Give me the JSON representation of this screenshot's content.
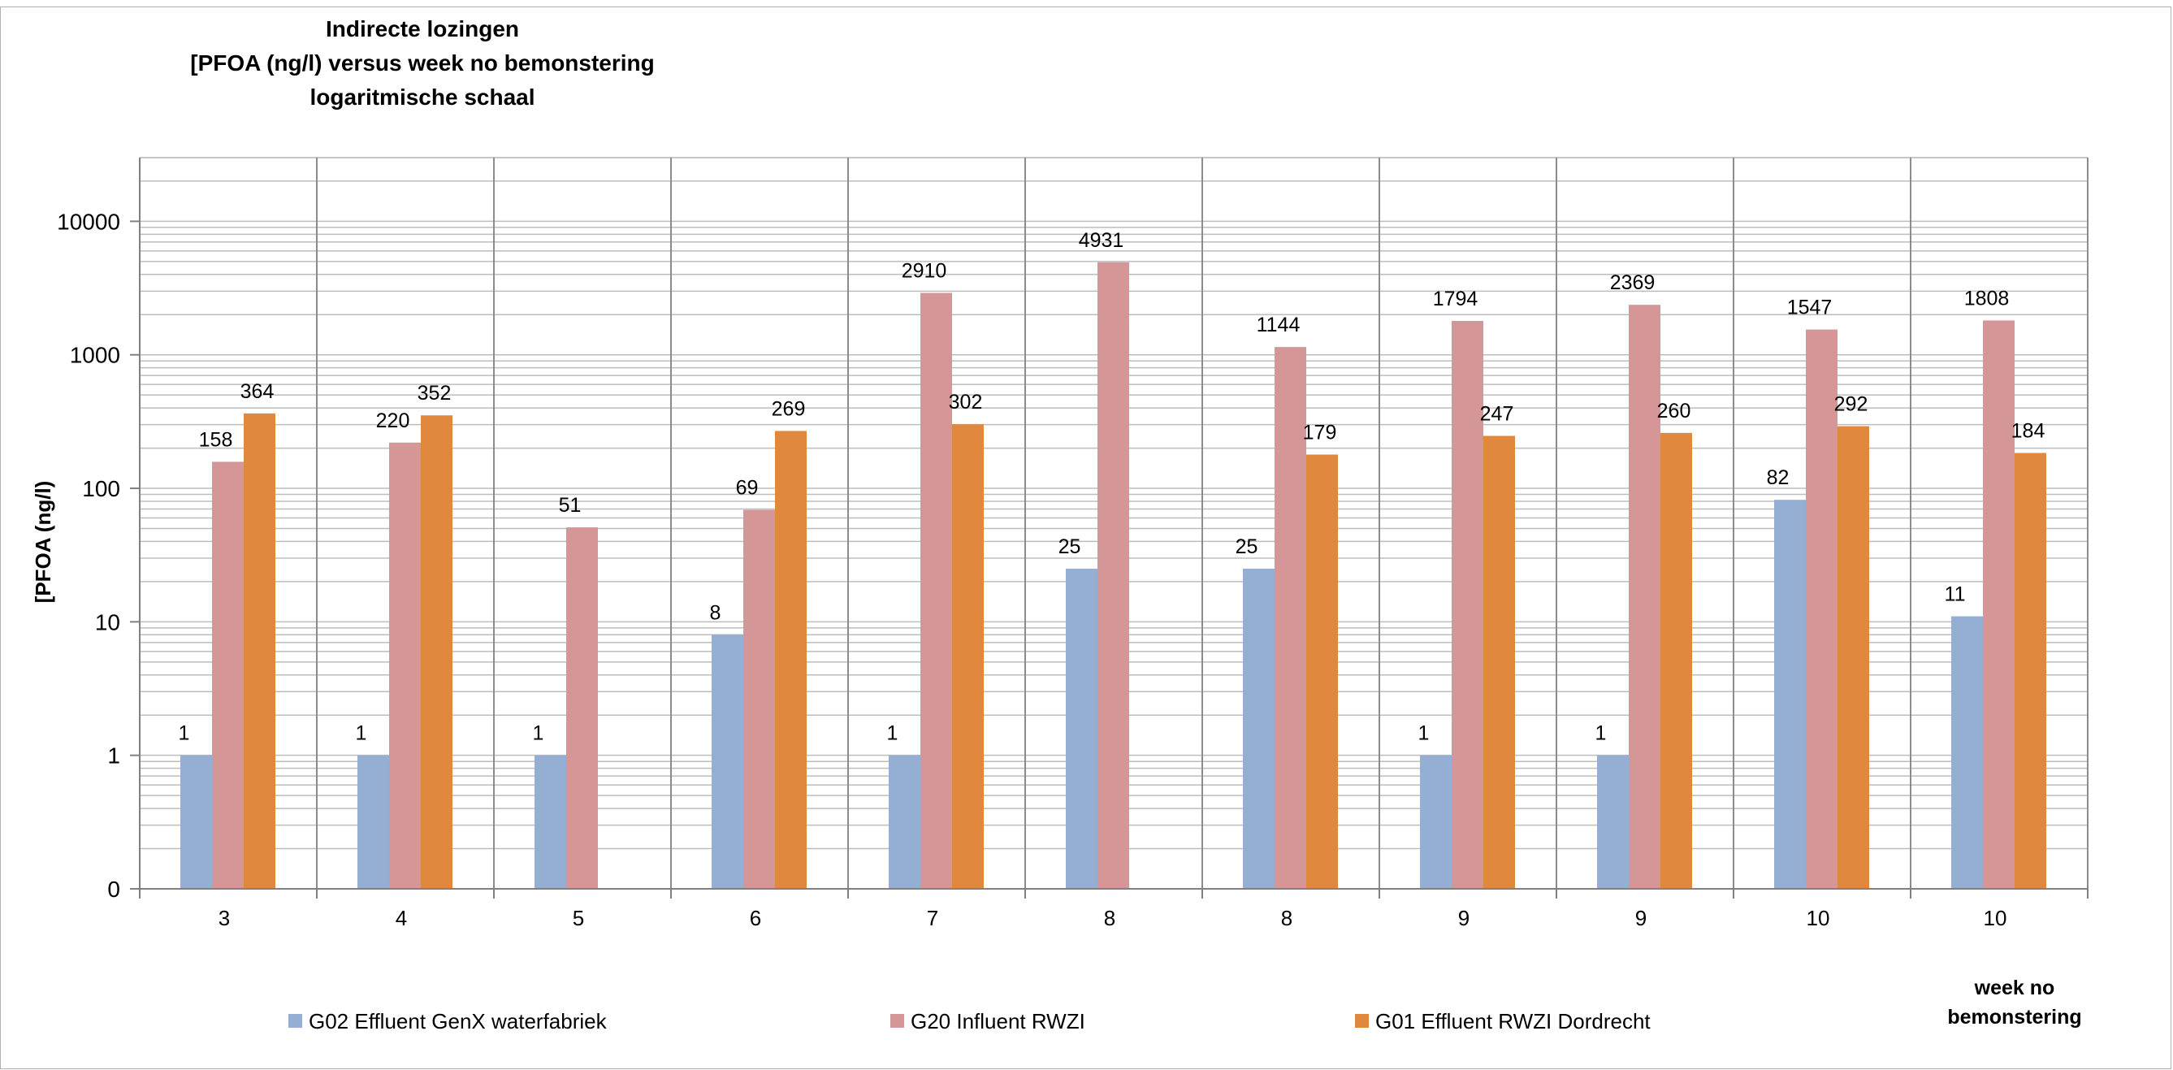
{
  "chart_data": {
    "type": "bar",
    "title_lines": [
      "Indirecte lozingen",
      "[PFOA (ng/l) versus week no bemonstering",
      "logaritmische schaal"
    ],
    "ylabel": "[PFOA (ng/l)",
    "xlabel_lines": [
      "week no",
      "bemonstering"
    ],
    "y_scale": "log",
    "ylim": [
      0.1,
      30000
    ],
    "y_ticks": [
      0.1,
      1,
      10,
      100,
      1000,
      10000
    ],
    "y_tick_labels": [
      "0",
      "1",
      "10",
      "100",
      "1000",
      "10000"
    ],
    "grid": "horizontal minor log grid and vertical category separators",
    "legend_position": "bottom",
    "categories": [
      "3",
      "4",
      "5",
      "6",
      "7",
      "8",
      "8",
      "9",
      "9",
      "10",
      "10"
    ],
    "series": [
      {
        "name": "G02 Effluent GenX waterfabriek",
        "color": "#95aed3",
        "values": [
          1,
          1,
          1,
          8,
          1,
          25,
          25,
          1,
          1,
          82,
          11
        ],
        "labels": [
          "1",
          "1",
          "1",
          "8",
          "1",
          "25",
          "25",
          "1",
          "1",
          "82",
          "11"
        ]
      },
      {
        "name": "G20 Influent RWZI",
        "color": "#d49696",
        "values": [
          158,
          220,
          51,
          69,
          2910,
          4931,
          1144,
          1794,
          2369,
          1547,
          1808
        ],
        "labels": [
          "158",
          "220",
          "51",
          "69",
          "2910",
          "4931",
          "1144",
          "1794",
          "2369",
          "1547",
          "1808"
        ]
      },
      {
        "name": "G01 Effluent RWZI Dordrecht",
        "color": "#e0883e",
        "values": [
          364,
          352,
          null,
          269,
          302,
          null,
          179,
          247,
          260,
          292,
          184
        ],
        "labels": [
          "364",
          "352",
          "",
          "269",
          "302",
          "",
          "179",
          "247",
          "260",
          "292",
          "184"
        ]
      }
    ]
  }
}
